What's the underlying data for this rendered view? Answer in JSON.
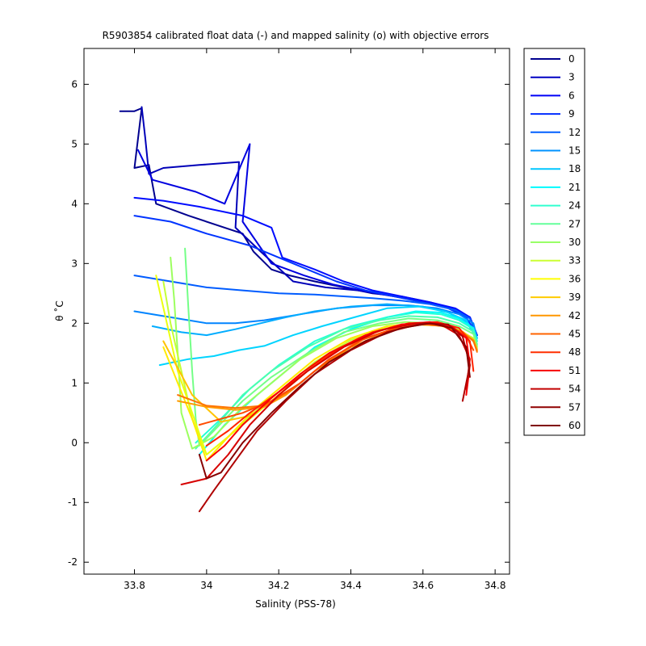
{
  "chart_data": {
    "type": "line",
    "title": "R5903854 calibrated float data (-) and mapped salinity (o) with objective errors",
    "xlabel": "Salinity (PSS-78)",
    "ylabel": "θ ˚C",
    "xlim": [
      33.66,
      34.84
    ],
    "ylim": [
      -2.2,
      6.6
    ],
    "x_ticks": [
      33.8,
      34.0,
      34.2,
      34.4,
      34.6,
      34.8
    ],
    "x_tick_labels": [
      "33.8",
      "34",
      "34.2",
      "34.4",
      "34.6",
      "34.8"
    ],
    "y_ticks": [
      -2,
      -1,
      0,
      1,
      2,
      3,
      4,
      5,
      6
    ],
    "y_tick_labels": [
      "-2",
      "-1",
      "0",
      "1",
      "2",
      "3",
      "4",
      "5",
      "6"
    ],
    "grid": false,
    "legend_placement": "outside-right",
    "colormap": "jet",
    "series": [
      {
        "name": "0",
        "color": "#00008f",
        "x": [
          33.76,
          33.8,
          33.82,
          33.8,
          33.84,
          33.86,
          33.95,
          34.1,
          34.13,
          34.18,
          34.23,
          34.3,
          34.38,
          34.46,
          34.54,
          34.62,
          34.68,
          34.73,
          34.75
        ],
        "y": [
          5.55,
          5.55,
          5.6,
          4.6,
          4.65,
          4.0,
          3.8,
          3.5,
          3.2,
          2.9,
          2.8,
          2.7,
          2.6,
          2.5,
          2.45,
          2.35,
          2.25,
          2.1,
          1.8
        ]
      },
      {
        "name": "3",
        "color": "#0000b8",
        "x": [
          33.82,
          33.83,
          33.84,
          33.88,
          33.98,
          34.09,
          34.08,
          34.15,
          34.24,
          34.33,
          34.42,
          34.52,
          34.61,
          34.68,
          34.73,
          34.75
        ],
        "y": [
          5.62,
          5.1,
          4.5,
          4.6,
          4.65,
          4.7,
          3.6,
          3.2,
          2.7,
          2.6,
          2.55,
          2.45,
          2.35,
          2.25,
          2.1,
          1.8
        ]
      },
      {
        "name": "6",
        "color": "#0000e0",
        "x": [
          33.81,
          33.85,
          33.97,
          34.05,
          34.12,
          34.1,
          34.18,
          34.27,
          34.35,
          34.43,
          34.52,
          34.61,
          34.68,
          34.73,
          34.75
        ],
        "y": [
          4.9,
          4.4,
          4.2,
          4.0,
          5.0,
          3.7,
          3.0,
          2.8,
          2.65,
          2.55,
          2.45,
          2.35,
          2.25,
          2.1,
          1.8
        ]
      },
      {
        "name": "9",
        "color": "#000cff",
        "x": [
          33.8,
          33.88,
          33.98,
          34.1,
          34.18,
          34.21,
          34.3,
          34.38,
          34.46,
          34.54,
          34.62,
          34.69,
          34.73,
          34.75
        ],
        "y": [
          4.1,
          4.05,
          3.95,
          3.8,
          3.6,
          3.1,
          2.9,
          2.7,
          2.55,
          2.45,
          2.35,
          2.25,
          2.1,
          1.8
        ]
      },
      {
        "name": "12",
        "color": "#0034ff",
        "x": [
          33.8,
          33.9,
          34.0,
          34.12,
          34.2,
          34.28,
          34.36,
          34.44,
          34.52,
          34.6,
          34.67,
          34.72,
          34.75
        ],
        "y": [
          3.8,
          3.7,
          3.5,
          3.3,
          3.1,
          2.9,
          2.7,
          2.55,
          2.45,
          2.35,
          2.25,
          2.1,
          1.8
        ]
      },
      {
        "name": "15",
        "color": "#005cff",
        "x": [
          33.8,
          33.9,
          34.0,
          34.1,
          34.2,
          34.3,
          34.38,
          34.46,
          34.54,
          34.62,
          34.69,
          34.73,
          34.75
        ],
        "y": [
          2.8,
          2.7,
          2.6,
          2.55,
          2.5,
          2.48,
          2.45,
          2.42,
          2.38,
          2.32,
          2.22,
          2.08,
          1.8
        ]
      },
      {
        "name": "18",
        "color": "#0084ff",
        "x": [
          33.8,
          33.9,
          34.0,
          34.08,
          34.16,
          34.26,
          34.36,
          34.46,
          34.56,
          34.64,
          34.7,
          34.74,
          34.75
        ],
        "y": [
          2.2,
          2.1,
          2.0,
          2.0,
          2.05,
          2.15,
          2.25,
          2.3,
          2.3,
          2.25,
          2.15,
          2.0,
          1.75
        ]
      },
      {
        "name": "21",
        "color": "#00acff",
        "x": [
          33.85,
          33.93,
          34.0,
          34.08,
          34.15,
          34.22,
          34.3,
          34.4,
          34.5,
          34.6,
          34.67,
          34.72,
          34.75
        ],
        "y": [
          1.95,
          1.85,
          1.8,
          1.9,
          2.0,
          2.1,
          2.2,
          2.28,
          2.32,
          2.28,
          2.18,
          2.02,
          1.75
        ]
      },
      {
        "name": "24",
        "color": "#00d4ff",
        "x": [
          33.87,
          33.95,
          34.02,
          34.09,
          34.16,
          34.24,
          34.32,
          34.41,
          34.5,
          34.59,
          34.66,
          34.72,
          34.75
        ],
        "y": [
          1.3,
          1.4,
          1.45,
          1.55,
          1.62,
          1.8,
          1.95,
          2.1,
          2.25,
          2.28,
          2.2,
          2.05,
          1.75
        ]
      },
      {
        "name": "27",
        "color": "#00fcfb",
        "x": [
          33.98,
          34.05,
          34.14,
          34.22,
          34.3,
          34.4,
          34.5,
          34.58,
          34.65,
          34.7,
          34.74,
          34.75
        ],
        "y": [
          -0.2,
          0.3,
          0.8,
          1.2,
          1.6,
          1.9,
          2.1,
          2.2,
          2.18,
          2.08,
          1.92,
          1.7
        ]
      },
      {
        "name": "30",
        "color": "#24ffd7",
        "x": [
          33.97,
          34.04,
          34.12,
          34.2,
          34.3,
          34.4,
          34.5,
          34.58,
          34.65,
          34.7,
          34.74,
          34.75
        ],
        "y": [
          0.0,
          0.4,
          0.9,
          1.3,
          1.7,
          1.95,
          2.1,
          2.18,
          2.15,
          2.05,
          1.9,
          1.7
        ]
      },
      {
        "name": "33",
        "color": "#4cffaf",
        "x": [
          33.97,
          34.03,
          34.1,
          34.18,
          34.28,
          34.38,
          34.48,
          34.56,
          34.64,
          34.7,
          34.74,
          34.75
        ],
        "y": [
          -0.1,
          0.3,
          0.8,
          1.2,
          1.6,
          1.9,
          2.05,
          2.12,
          2.1,
          2.0,
          1.86,
          1.65
        ]
      },
      {
        "name": "36",
        "color": "#74ff87",
        "x": [
          33.94,
          33.95,
          33.96,
          33.97,
          33.98,
          34.02,
          34.1,
          34.18,
          34.28,
          34.38,
          34.48,
          34.56,
          34.64,
          34.7,
          34.74,
          34.75
        ],
        "y": [
          3.25,
          2.2,
          1.2,
          0.4,
          -0.05,
          0.2,
          0.7,
          1.1,
          1.5,
          1.85,
          2.0,
          2.08,
          2.05,
          1.95,
          1.82,
          1.62
        ]
      },
      {
        "name": "39",
        "color": "#9cff5f",
        "x": [
          33.9,
          33.91,
          33.92,
          33.93,
          33.96,
          34.02,
          34.1,
          34.18,
          34.26,
          34.36,
          34.46,
          34.55,
          34.63,
          34.69,
          34.73,
          34.75
        ],
        "y": [
          3.1,
          2.4,
          1.5,
          0.5,
          -0.1,
          0.1,
          0.6,
          1.0,
          1.4,
          1.75,
          1.95,
          2.02,
          2.0,
          1.92,
          1.78,
          1.6
        ]
      },
      {
        "name": "42",
        "color": "#c4ff37",
        "x": [
          33.88,
          33.9,
          33.93,
          33.96,
          34.0,
          34.06,
          34.14,
          34.22,
          34.3,
          34.4,
          34.5,
          34.58,
          34.65,
          34.7,
          34.74,
          34.75
        ],
        "y": [
          2.7,
          2.0,
          1.2,
          0.4,
          -0.2,
          0.1,
          0.55,
          0.95,
          1.35,
          1.72,
          1.92,
          1.98,
          1.96,
          1.88,
          1.75,
          1.58
        ]
      },
      {
        "name": "45",
        "color": "#ecff0f",
        "x": [
          33.86,
          33.89,
          33.92,
          33.96,
          34.0,
          34.08,
          34.16,
          34.24,
          34.32,
          34.42,
          34.52,
          34.6,
          34.66,
          34.71,
          34.74,
          34.75
        ],
        "y": [
          2.8,
          2.0,
          1.2,
          0.5,
          -0.2,
          0.2,
          0.6,
          1.0,
          1.4,
          1.75,
          1.95,
          2.0,
          1.96,
          1.86,
          1.72,
          1.55
        ]
      },
      {
        "name": "48",
        "color": "#ffeb00",
        "x": [
          33.88,
          33.92,
          33.96,
          34.0,
          34.06,
          34.14,
          34.22,
          34.3,
          34.4,
          34.5,
          34.58,
          34.65,
          34.7,
          34.74,
          34.75
        ],
        "y": [
          1.6,
          1.0,
          0.4,
          -0.3,
          0.1,
          0.6,
          1.0,
          1.4,
          1.75,
          1.95,
          2.0,
          1.96,
          1.86,
          1.72,
          1.55
        ]
      },
      {
        "name": "51",
        "color": "#ffc300",
        "x": [
          33.88,
          33.96,
          34.04,
          34.12,
          34.18,
          34.24,
          34.32,
          34.42,
          34.52,
          34.6,
          34.66,
          34.71,
          34.74,
          34.75
        ],
        "y": [
          1.7,
          0.8,
          0.35,
          0.45,
          0.7,
          1.0,
          1.4,
          1.75,
          1.95,
          2.0,
          1.96,
          1.86,
          1.72,
          1.55
        ]
      },
      {
        "name": "54",
        "color": "#ff9b00",
        "x": [
          33.92,
          34.0,
          34.08,
          34.16,
          34.22,
          34.3,
          34.4,
          34.5,
          34.58,
          34.65,
          34.7,
          34.74,
          34.75
        ],
        "y": [
          0.7,
          0.6,
          0.55,
          0.6,
          0.8,
          1.2,
          1.6,
          1.85,
          1.98,
          1.96,
          1.86,
          1.72,
          1.55
        ]
      },
      {
        "name": "57",
        "color": "#ff7300",
        "x": [
          33.92,
          34.0,
          34.08,
          34.16,
          34.24,
          34.32,
          34.42,
          34.52,
          34.6,
          34.66,
          34.71,
          34.74,
          34.75
        ],
        "y": [
          0.8,
          0.62,
          0.58,
          0.62,
          0.9,
          1.3,
          1.7,
          1.9,
          1.98,
          1.95,
          1.85,
          1.7,
          1.52
        ]
      },
      {
        "name": "60",
        "color": "#ff4b00",
        "x": [
          33.98,
          34.04,
          34.1,
          34.18,
          34.26,
          34.34,
          34.44,
          34.54,
          34.62,
          34.68,
          34.72,
          34.74
        ],
        "y": [
          0.3,
          0.4,
          0.5,
          0.7,
          1.0,
          1.4,
          1.75,
          1.95,
          2.0,
          1.92,
          1.78,
          1.55
        ]
      }
    ],
    "extra_series": [
      {
        "name": "",
        "color": "#ff2300",
        "x": [
          34.0,
          34.06,
          34.12,
          34.2,
          34.28,
          34.36,
          34.46,
          34.56,
          34.64,
          34.7,
          34.73,
          34.74
        ],
        "y": [
          -0.05,
          0.2,
          0.5,
          0.85,
          1.2,
          1.55,
          1.85,
          2.0,
          2.02,
          1.92,
          1.7,
          1.2
        ]
      },
      {
        "name": "",
        "color": "#fb0000",
        "x": [
          34.0,
          34.05,
          34.1,
          34.18,
          34.26,
          34.34,
          34.44,
          34.54,
          34.62,
          34.68,
          34.72,
          34.73,
          34.72
        ],
        "y": [
          -0.3,
          -0.05,
          0.3,
          0.75,
          1.15,
          1.5,
          1.8,
          1.98,
          2.02,
          1.95,
          1.75,
          1.3,
          0.8
        ]
      },
      {
        "name": "",
        "color": "#d70000",
        "x": [
          33.93,
          34.0,
          34.06,
          34.12,
          34.2,
          34.28,
          34.38,
          34.48,
          34.58,
          34.65,
          34.7,
          34.73,
          34.72
        ],
        "y": [
          -0.7,
          -0.6,
          -0.2,
          0.3,
          0.8,
          1.2,
          1.6,
          1.88,
          2.0,
          1.98,
          1.8,
          1.4,
          0.9
        ]
      },
      {
        "name": "",
        "color": "#af0000",
        "x": [
          33.98,
          34.02,
          34.08,
          34.14,
          34.22,
          34.3,
          34.4,
          34.5,
          34.6,
          34.67,
          34.71,
          34.73,
          34.71
        ],
        "y": [
          -1.15,
          -0.8,
          -0.3,
          0.2,
          0.7,
          1.15,
          1.55,
          1.85,
          2.0,
          1.98,
          1.78,
          1.3,
          0.7
        ]
      },
      {
        "name": "",
        "color": "#870000",
        "x": [
          33.98,
          34.0,
          34.04,
          34.1,
          34.18,
          34.26,
          34.34,
          34.44,
          34.54,
          34.62,
          34.68,
          34.72,
          34.73
        ],
        "y": [
          -0.2,
          -0.6,
          -0.5,
          0.0,
          0.5,
          0.95,
          1.35,
          1.7,
          1.92,
          2.0,
          1.92,
          1.6,
          1.1
        ]
      }
    ]
  },
  "legend": {
    "entries": [
      "0",
      "3",
      "6",
      "9",
      "12",
      "15",
      "18",
      "21",
      "24",
      "27",
      "30",
      "33",
      "36",
      "39",
      "42",
      "45",
      "48",
      "51",
      "54",
      "57",
      "60"
    ],
    "colors": [
      "#00008f",
      "#0000c3",
      "#0000f7",
      "#002bff",
      "#005fff",
      "#0093ff",
      "#00c7ff",
      "#00fbff",
      "#30ffcf",
      "#64ff9b",
      "#98ff67",
      "#ccff33",
      "#ffff00",
      "#ffcb00",
      "#ff9700",
      "#ff6300",
      "#ff2f00",
      "#f70000",
      "#c30000",
      "#8f0000",
      "#800000"
    ]
  }
}
